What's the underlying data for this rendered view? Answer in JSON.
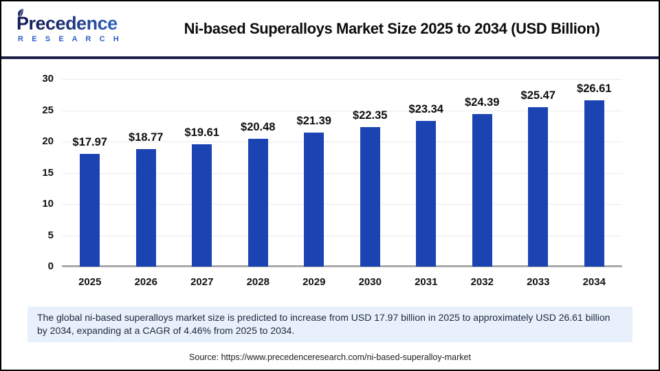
{
  "header": {
    "logo_name": "Precedence",
    "logo_subname": "R E S E A R C H",
    "title": "Ni-based Superalloys Market Size 2025 to 2034 (USD Billion)"
  },
  "chart_data": {
    "type": "bar",
    "title": "Ni-based Superalloys Market Size 2025 to 2034 (USD Billion)",
    "categories": [
      "2025",
      "2026",
      "2027",
      "2028",
      "2029",
      "2030",
      "2031",
      "2032",
      "2033",
      "2034"
    ],
    "values": [
      17.97,
      18.77,
      19.61,
      20.48,
      21.39,
      22.35,
      23.34,
      24.39,
      25.47,
      26.61
    ],
    "value_labels": [
      "$17.97",
      "$18.77",
      "$19.61",
      "$20.48",
      "$21.39",
      "$22.35",
      "$23.34",
      "$24.39",
      "$25.47",
      "$26.61"
    ],
    "xlabel": "",
    "ylabel": "",
    "ylim": [
      0,
      30
    ],
    "yticks": [
      0,
      5,
      10,
      15,
      20,
      25,
      30
    ],
    "grid": "horizontal",
    "legend_position": "none",
    "bar_color": "#1b44b2",
    "gridline_color": "#ececec",
    "baseline_color": "#a9a9a9",
    "units": "USD Billion"
  },
  "note": {
    "text": "The global ni-based superalloys market size is predicted to increase from USD 17.97 billion in 2025 to approximately USD 26.61 billion by 2034, expanding at a CAGR of 4.46% from 2025 to 2034."
  },
  "source": {
    "text": "Source: https://www.precedenceresearch.com/ni-based-superalloy-market"
  },
  "colors": {
    "divider": "#1a2045",
    "note_background": "#e8f0fb",
    "logo_navy": "#1c2a6b",
    "logo_blue": "#2f6fd6",
    "research_blue": "#2d5fc7"
  }
}
